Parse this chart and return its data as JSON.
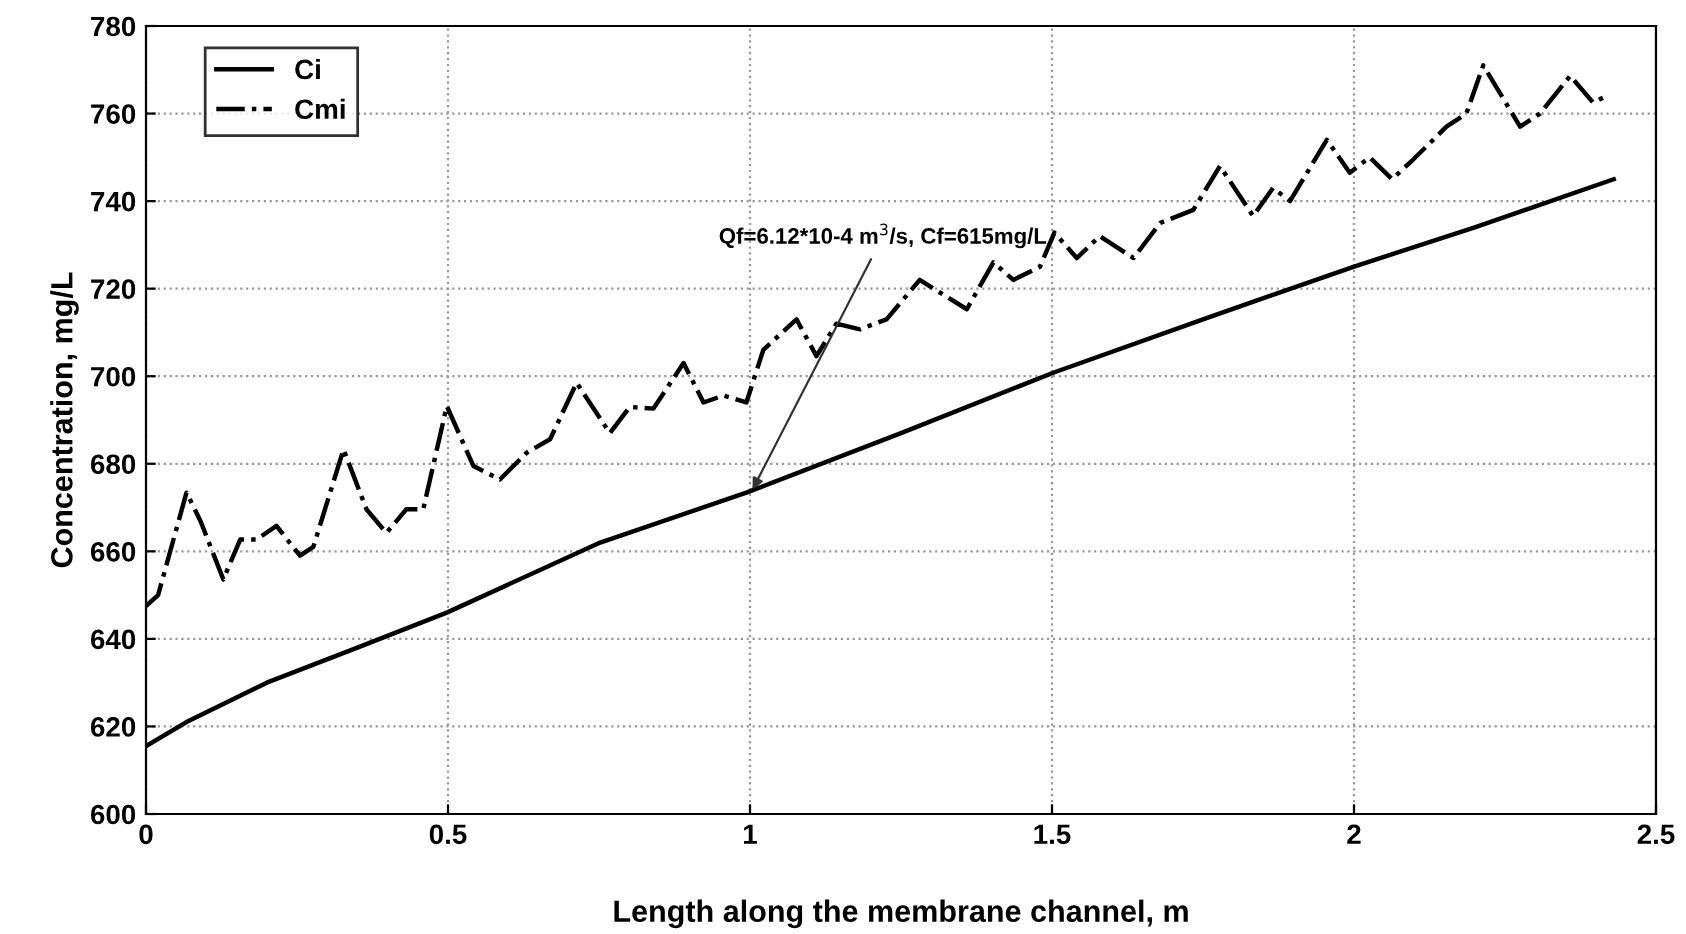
{
  "chart_data": {
    "type": "line",
    "xlabel": "Length along the membrane channel, m",
    "ylabel": "Concentration, mg/L",
    "xlim": [
      0,
      2.5
    ],
    "xticks": [
      0,
      0.5,
      1,
      1.5,
      2,
      2.5
    ],
    "ylim": [
      600,
      780
    ],
    "yticks": [
      600,
      620,
      640,
      660,
      680,
      700,
      720,
      740,
      760,
      780
    ],
    "grid": true,
    "legend": "top left",
    "annotations": [
      {
        "text": "Qf=6.12*10-4 m$^{3}$/s, Cf=615mg/L",
        "x": 1.0,
        "y": 673
      }
    ],
    "series": [
      {
        "name": "Ci",
        "color": "#000000",
        "line_style": "solid",
        "x": [
          0,
          0.067,
          0.2,
          0.35,
          0.498,
          0.752,
          0.994,
          1.25,
          1.502,
          1.75,
          1.999,
          2.2,
          2.43
        ],
        "values": [
          615.5,
          621,
          630,
          638,
          646,
          662,
          673.4,
          687,
          700.8,
          713,
          725,
          734,
          745
        ]
      },
      {
        "name": "Cmi",
        "color": "#000000",
        "line_style": "dashdot",
        "x": [
          0,
          0.02,
          0.067,
          0.09,
          0.128,
          0.156,
          0.183,
          0.216,
          0.255,
          0.277,
          0.327,
          0.365,
          0.398,
          0.431,
          0.459,
          0.498,
          0.542,
          0.586,
          0.63,
          0.669,
          0.713,
          0.768,
          0.801,
          0.84,
          0.89,
          0.923,
          0.956,
          0.994,
          1.022,
          1.077,
          1.11,
          1.143,
          1.182,
          1.226,
          1.281,
          1.359,
          1.403,
          1.436,
          1.48,
          1.504,
          1.541,
          1.579,
          1.635,
          1.679,
          1.734,
          1.778,
          1.833,
          1.866,
          1.894,
          1.955,
          1.993,
          2.026,
          2.063,
          2.098,
          2.153,
          2.186,
          2.214,
          2.275,
          2.308,
          2.358,
          2.396,
          2.418
        ],
        "values": [
          647.5,
          650,
          673.4,
          667,
          653.6,
          662.7,
          662.7,
          665.8,
          659,
          661,
          683.3,
          669.6,
          664.2,
          669.6,
          669.6,
          693.2,
          679.5,
          676.4,
          682.5,
          685.6,
          698.5,
          687,
          693,
          692.6,
          703,
          694,
          695.6,
          694,
          706,
          713,
          704.6,
          712,
          710.7,
          713,
          722,
          715.3,
          726,
          722,
          725,
          732.8,
          727,
          732,
          727,
          735,
          738,
          748,
          736.6,
          743,
          740,
          754,
          746.5,
          750,
          745,
          749.5,
          757,
          760,
          771,
          757,
          760,
          768.6,
          762.5,
          764
        ]
      }
    ]
  }
}
